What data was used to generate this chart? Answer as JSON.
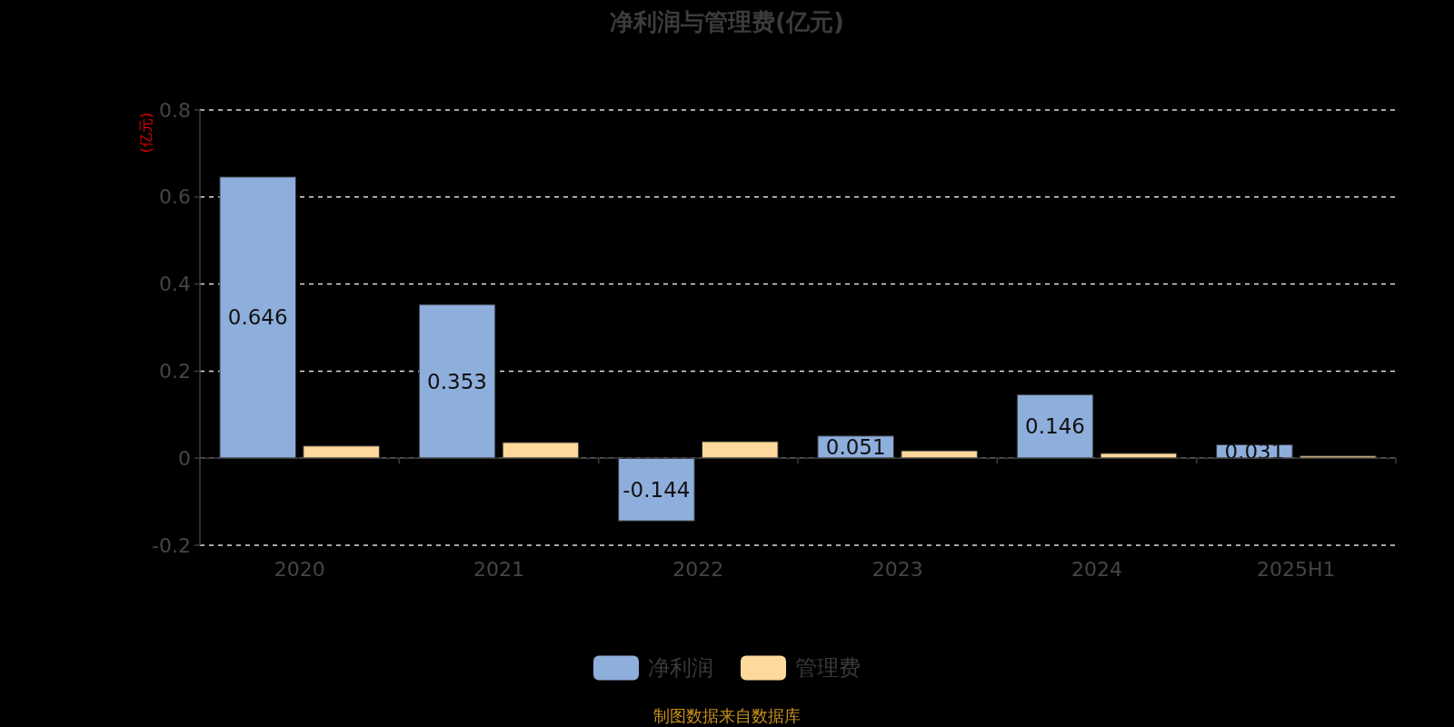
{
  "chart_data": {
    "type": "bar",
    "title": "净利润与管理费(亿元)",
    "ylabel": "(亿元)",
    "categories": [
      "2020",
      "2021",
      "2022",
      "2023",
      "2024",
      "2025H1"
    ],
    "series": [
      {
        "name": "净利润",
        "color": "#8eaedc",
        "values": [
          0.646,
          0.353,
          -0.144,
          0.051,
          0.146,
          0.031
        ],
        "value_labels": [
          "0.646",
          "0.353",
          "-0.144",
          "0.051",
          "0.146",
          "0.031"
        ]
      },
      {
        "name": "管理费",
        "color": "#ffd99b",
        "values": [
          0.028,
          0.036,
          0.038,
          0.017,
          0.011,
          0.005
        ]
      }
    ],
    "ylim": [
      -0.2,
      0.8
    ],
    "yticks": [
      -0.2,
      0,
      0.2,
      0.4,
      0.6,
      0.8
    ],
    "grid": "y",
    "legend": "bottom",
    "annotations": [
      "制图数据来自数据库"
    ]
  }
}
